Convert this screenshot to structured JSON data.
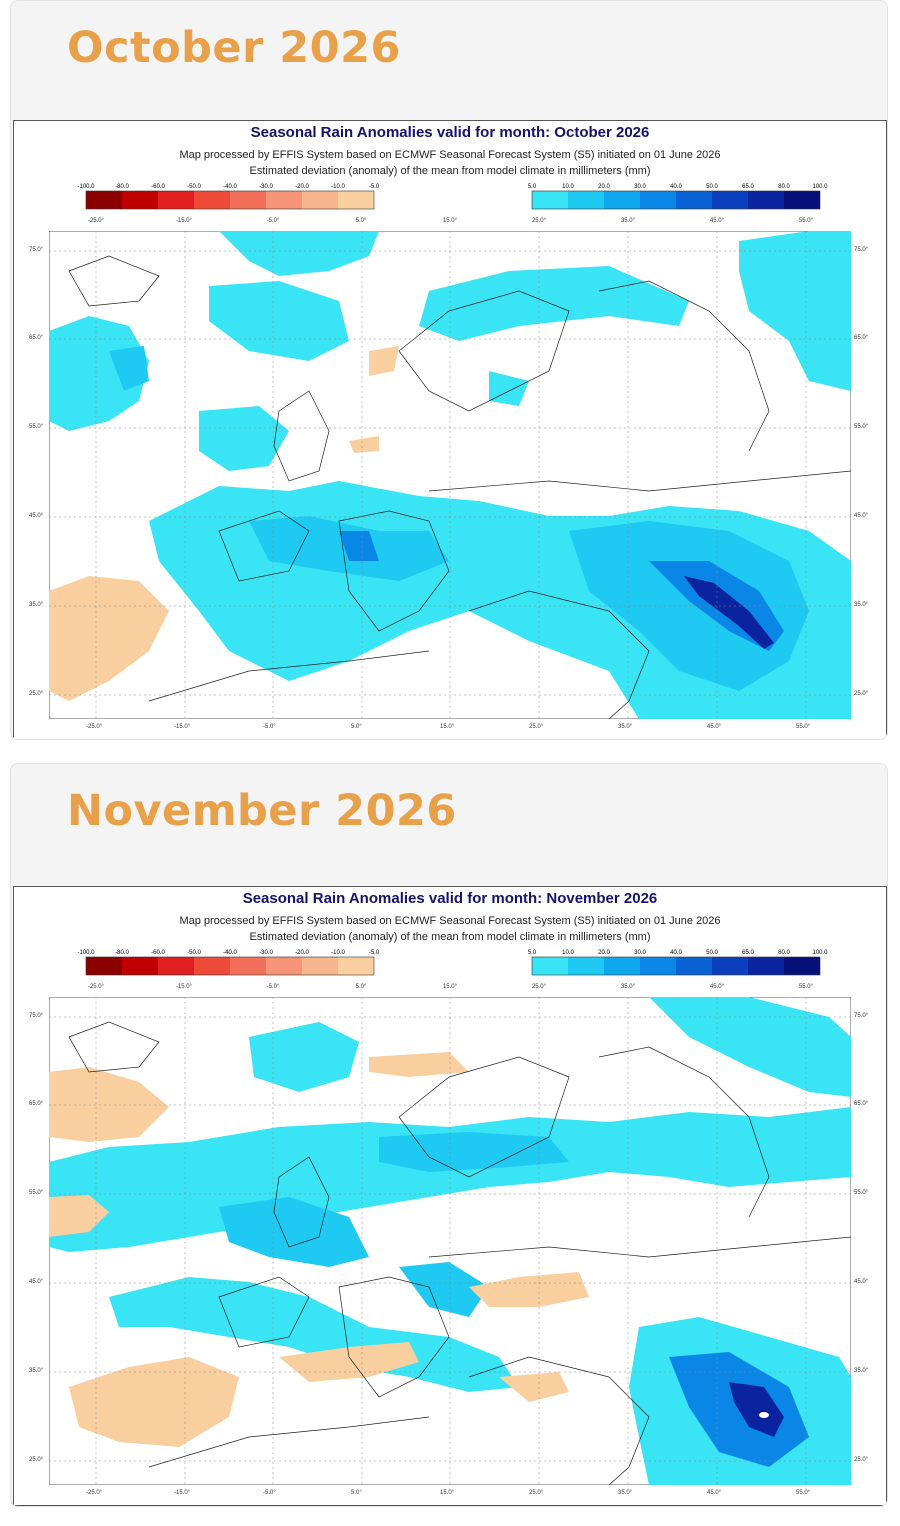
{
  "months": [
    {
      "heading": "October 2026",
      "map_title": "Seasonal Rain Anomalies valid for month: October 2026",
      "map_subtitle": "Map processed by EFFIS System based on ECMWF Seasonal Forecast System (S5) initiated on 01 June 2026",
      "map_subtitle2": "Estimated deviation (anomaly) of the mean from model climate in millimeters (mm)"
    },
    {
      "heading": "November 2026",
      "map_title": "Seasonal Rain Anomalies valid for month: November 2026",
      "map_subtitle": "Map processed by EFFIS System based on ECMWF Seasonal Forecast System (S5) initiated on 01 June 2026",
      "map_subtitle2": "Estimated deviation (anomaly) of the mean from model climate in millimeters (mm)"
    }
  ],
  "legend": {
    "negative": {
      "labels": [
        "-100.0",
        "-80.0",
        "-60.0",
        "-50.0",
        "-40.0",
        "-30.0",
        "-20.0",
        "-10.0",
        "-5.0"
      ],
      "colors": [
        "#8b0000",
        "#c00000",
        "#e02020",
        "#ee4a3a",
        "#f2705a",
        "#f59478",
        "#f8b690",
        "#f9cf9f"
      ]
    },
    "positive": {
      "labels": [
        "5.0",
        "10.0",
        "20.0",
        "30.0",
        "40.0",
        "50.0",
        "65.0",
        "80.0",
        "100.0"
      ],
      "colors": [
        "#39e4f5",
        "#1ec9f2",
        "#0fa8ef",
        "#0a87e6",
        "#0a63d4",
        "#0b3fbd",
        "#0a24a0",
        "#061078"
      ]
    }
  },
  "axes": {
    "lon_labels": [
      "-25.0°",
      "-15.0°",
      "-5.0°",
      "5.0°",
      "15.0°",
      "25.0°",
      "35.0°",
      "45.0°",
      "55.0°"
    ],
    "bottom_lon_labels": [
      "-25.0°",
      "-15.0°",
      "-5.0°",
      "5.0°",
      "15.0°",
      "25.0°",
      "35.0°",
      "45.0°",
      "55.0°"
    ],
    "lat_labels": [
      "75.0°",
      "65.0°",
      "55.0°",
      "45.0°",
      "35.0°",
      "25.0°"
    ]
  }
}
